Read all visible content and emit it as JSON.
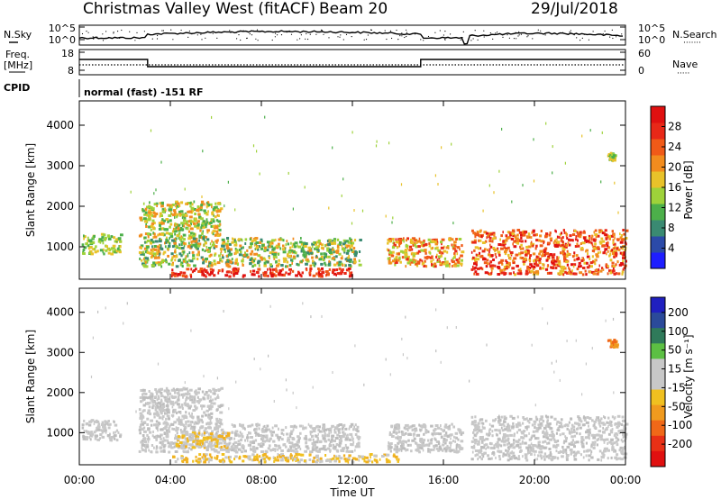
{
  "header": {
    "station": "Christmas Valley West (fitACF)",
    "beam": "Beam 20",
    "date": "29/Jul/2018"
  },
  "panels": {
    "noise": {
      "left_label": "N.Sky",
      "right_label": "N.Search",
      "right_dots": "·······",
      "left_ticks": [
        "10^5",
        "10^0"
      ],
      "right_ticks": [
        "10^5",
        "10^0"
      ]
    },
    "freq": {
      "left_label": "Freq.",
      "left_unit": "[MHz]",
      "left_ticks": [
        "18",
        "8"
      ],
      "right_label": "Nave",
      "right_dots": "·····",
      "right_ticks": [
        "60",
        "0"
      ]
    },
    "cpid": {
      "label": "CPID",
      "text": "normal (fast) -151 RF"
    }
  },
  "axes": {
    "y_label": "Slant Range [km]",
    "y_ticks": [
      "1000",
      "2000",
      "3000",
      "4000"
    ],
    "x_label": "Time UT",
    "x_ticks": [
      "00:00",
      "04:00",
      "08:00",
      "12:00",
      "16:00",
      "20:00",
      "00:00"
    ]
  },
  "colorbars": {
    "power": {
      "label": "Power [dB]",
      "ticks": [
        "4",
        "8",
        "12",
        "16",
        "20",
        "24",
        "28"
      ],
      "colors": [
        "#1e1eff",
        "#2b4aa8",
        "#3a8a72",
        "#4caf4a",
        "#9ed23a",
        "#e8c22a",
        "#f28c1e",
        "#f05a18",
        "#e82818",
        "#e01010"
      ]
    },
    "velocity": {
      "label": "Velocity [m s⁻¹]",
      "ticks": [
        "200",
        "100",
        "50",
        "15",
        "-15",
        "-50",
        "-100",
        "-200"
      ],
      "colors": [
        "#2020c0",
        "#2b4a9a",
        "#2f7a5a",
        "#5cc043",
        "#c8c8c8",
        "#c8c8c8",
        "#f0c020",
        "#f09a1e",
        "#f06818",
        "#e83016",
        "#e01010"
      ]
    }
  },
  "chart_data": {
    "type": "heatmap",
    "title": "Christmas Valley West (fitACF) Beam 20 29/Jul/2018",
    "xlabel": "Time UT",
    "ylabel": "Slant Range [km]",
    "xlim_hours": [
      0,
      24
    ],
    "ylim_km": [
      200,
      4600
    ],
    "grid": false,
    "frequency_mhz": [
      {
        "from_hour": 0,
        "to_hour": 3,
        "value": 14
      },
      {
        "from_hour": 3,
        "to_hour": 15,
        "value": 10
      },
      {
        "from_hour": 15,
        "to_hour": 17,
        "value": 14
      },
      {
        "from_hour": 17,
        "to_hour": 24,
        "value": 14
      }
    ],
    "power_regions": [
      {
        "t0": 0.1,
        "t1": 1.8,
        "r0": 800,
        "r1": 1300,
        "level": "16-20"
      },
      {
        "t0": 2.6,
        "t1": 6.2,
        "r0": 1200,
        "r1": 2100,
        "level": "16-24"
      },
      {
        "t0": 2.6,
        "t1": 12.3,
        "r0": 500,
        "r1": 1200,
        "level": "12-24"
      },
      {
        "t0": 4.0,
        "t1": 12.0,
        "r0": 250,
        "r1": 450,
        "level": "24-28"
      },
      {
        "t0": 13.5,
        "t1": 16.8,
        "r0": 500,
        "r1": 1200,
        "level": "16-28"
      },
      {
        "t0": 17.2,
        "t1": 24.0,
        "r0": 300,
        "r1": 1400,
        "level": "20-28"
      },
      {
        "t0": 23.2,
        "t1": 23.6,
        "r0": 3100,
        "r1": 3300,
        "level": "16-20"
      }
    ],
    "velocity_regions": [
      {
        "t0": 0.1,
        "t1": 1.8,
        "r0": 800,
        "r1": 1300,
        "level": "-15..15"
      },
      {
        "t0": 2.6,
        "t1": 6.2,
        "r0": 1200,
        "r1": 2100,
        "level": "-15..15"
      },
      {
        "t0": 2.6,
        "t1": 12.3,
        "r0": 500,
        "r1": 1200,
        "level": "-15..15"
      },
      {
        "t0": 4.2,
        "t1": 6.5,
        "r0": 600,
        "r1": 1000,
        "level": "-50..-15"
      },
      {
        "t0": 4.0,
        "t1": 14.0,
        "r0": 250,
        "r1": 450,
        "level": "-50..-15"
      },
      {
        "t0": 13.5,
        "t1": 16.8,
        "r0": 500,
        "r1": 1200,
        "level": "-15..15"
      },
      {
        "t0": 17.2,
        "t1": 24.0,
        "r0": 300,
        "r1": 1400,
        "level": "-15..15"
      },
      {
        "t0": 23.2,
        "t1": 23.6,
        "r0": 3100,
        "r1": 3300,
        "level": "-100..-50"
      }
    ]
  }
}
